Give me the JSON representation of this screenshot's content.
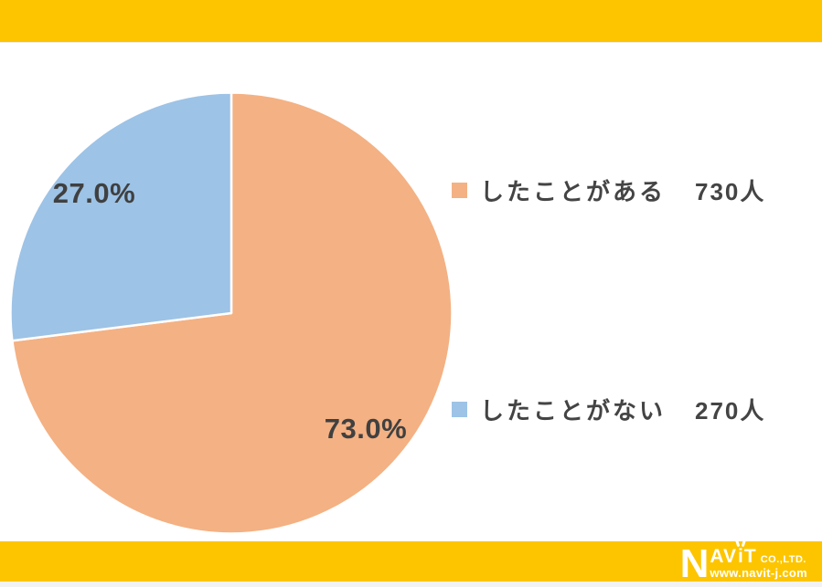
{
  "page": {
    "background": "#ffffff",
    "accent_bar_color": "#FDC500"
  },
  "chart_data": {
    "type": "pie",
    "title": "",
    "legend_position": "right",
    "start_angle_deg": 0,
    "direction": "clockwise",
    "separator_color": "#ffffff",
    "data_label_color": "#404040",
    "categories": [
      "したことがある",
      "したことがない"
    ],
    "values": [
      730,
      270
    ],
    "slices": [
      {
        "label": "したことがある",
        "count": 730,
        "count_label": "730人",
        "percent": 73.0,
        "percent_label": "73.0%",
        "color": "#F4B183"
      },
      {
        "label": "したことがない",
        "count": 270,
        "count_label": "270人",
        "percent": 27.0,
        "percent_label": "27.0%",
        "color": "#9DC3E6"
      }
    ]
  },
  "footer": {
    "brand": {
      "initial": "N",
      "before_i": "AV",
      "i_letter": "i",
      "after_i": "T",
      "company_suffix": "CO.,LTD.",
      "website": "www.navit-j.com"
    }
  }
}
